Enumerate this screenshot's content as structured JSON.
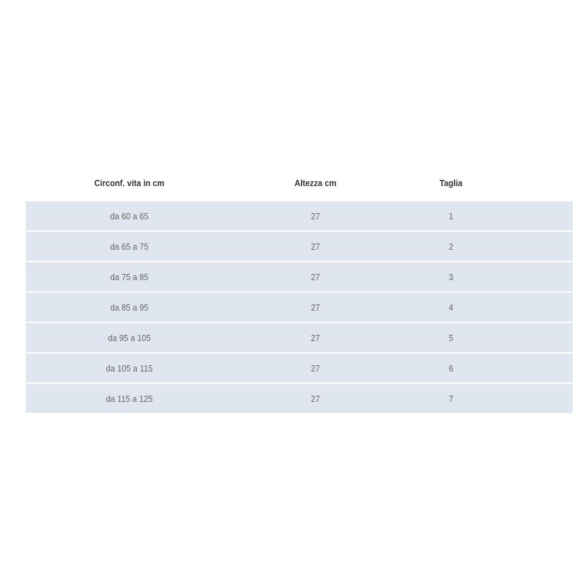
{
  "table": {
    "headers": [
      "Circonf. vita in cm",
      "Altezza cm",
      "Taglia"
    ],
    "rows": [
      [
        "da 60 a 65",
        "27",
        "1"
      ],
      [
        "da 65 a 75",
        "27",
        "2"
      ],
      [
        "da 75 a 85",
        "27",
        "3"
      ],
      [
        "da 85 a 95",
        "27",
        "4"
      ],
      [
        "da 95 a 105",
        "27",
        "5"
      ],
      [
        "da 105 a 115",
        "27",
        "6"
      ],
      [
        "da 115 a 125",
        "27",
        "7"
      ]
    ],
    "row_color": "#dfe6ef"
  }
}
